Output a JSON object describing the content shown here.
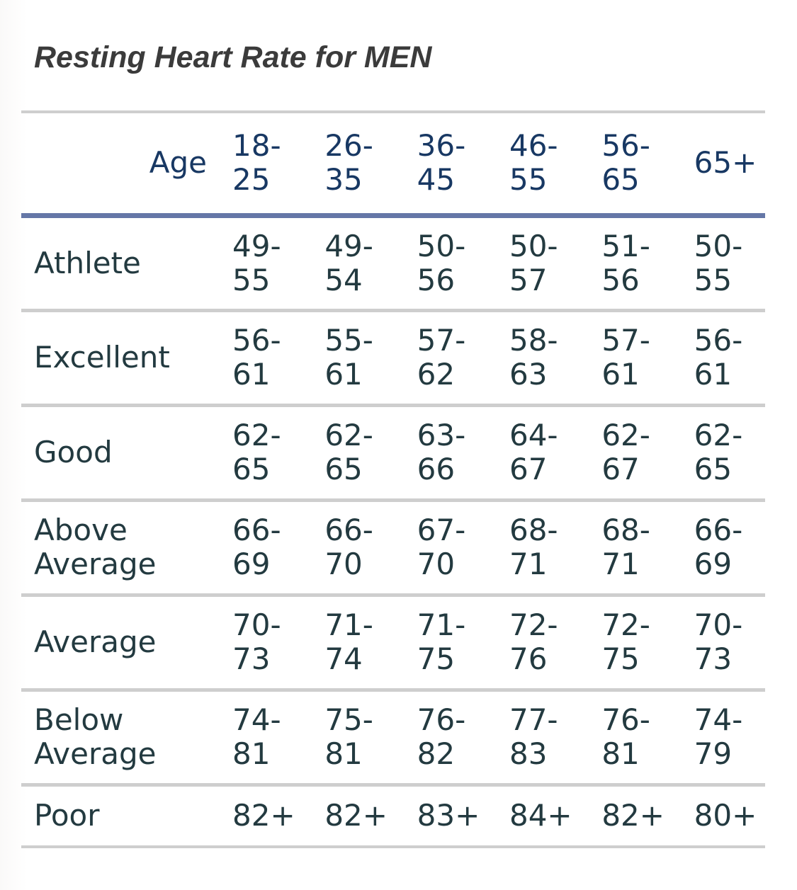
{
  "title": "Resting Heart Rate for MEN",
  "table": {
    "corner_label": "Age",
    "columns": [
      "18-25",
      "26-35",
      "36-45",
      "46-55",
      "56-65",
      "65+"
    ],
    "rows": [
      {
        "label": "Athlete",
        "values": [
          "49-55",
          "49-54",
          "50-56",
          "50-57",
          "51-56",
          "50-55"
        ]
      },
      {
        "label": "Excellent",
        "values": [
          "56-61",
          "55-61",
          "57-62",
          "58-63",
          "57-61",
          "56-61"
        ]
      },
      {
        "label": "Good",
        "values": [
          "62-65",
          "62-65",
          "63-66",
          "64-67",
          "62-67",
          "62-65"
        ]
      },
      {
        "label": "Above Average",
        "values": [
          "66-69",
          "66-70",
          "67-70",
          "68-71",
          "68-71",
          "66-69"
        ]
      },
      {
        "label": "Average",
        "values": [
          "70-73",
          "71-74",
          "71-75",
          "72-76",
          "72-75",
          "70-73"
        ]
      },
      {
        "label": "Below Average",
        "values": [
          "74-81",
          "75-81",
          "76-82",
          "77-83",
          "76-81",
          "74-79"
        ]
      },
      {
        "label": "Poor",
        "values": [
          "82+",
          "82+",
          "83+",
          "84+",
          "82+",
          "80+"
        ]
      }
    ]
  },
  "colors": {
    "title_text": "#3b3b3b",
    "header_text": "#183863",
    "body_text": "#233a40",
    "separator": "#cecece",
    "header_rule": "#6577a7"
  }
}
